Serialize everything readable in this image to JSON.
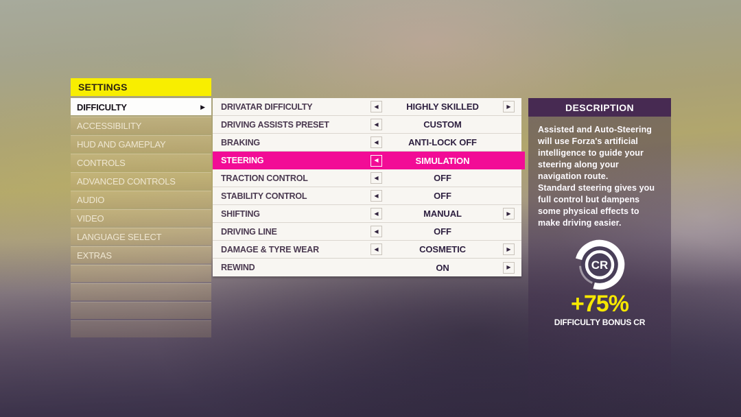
{
  "sidebar": {
    "title": "SETTINGS",
    "items": [
      {
        "label": "DIFFICULTY",
        "selected": true
      },
      {
        "label": "ACCESSIBILITY",
        "selected": false
      },
      {
        "label": "HUD AND GAMEPLAY",
        "selected": false
      },
      {
        "label": "CONTROLS",
        "selected": false
      },
      {
        "label": "ADVANCED CONTROLS",
        "selected": false
      },
      {
        "label": "AUDIO",
        "selected": false
      },
      {
        "label": "VIDEO",
        "selected": false
      },
      {
        "label": "LANGUAGE SELECT",
        "selected": false
      },
      {
        "label": "EXTRAS",
        "selected": false
      },
      {
        "label": "",
        "selected": false
      },
      {
        "label": "",
        "selected": false
      },
      {
        "label": "",
        "selected": false
      },
      {
        "label": "",
        "selected": false
      }
    ]
  },
  "settings": {
    "rows": [
      {
        "label": "DRIVATAR DIFFICULTY",
        "value": "HIGHLY SKILLED",
        "left_arrow": true,
        "right_arrow": true,
        "selected": false
      },
      {
        "label": "DRIVING ASSISTS PRESET",
        "value": "CUSTOM",
        "left_arrow": true,
        "right_arrow": false,
        "selected": false
      },
      {
        "label": "BRAKING",
        "value": "ANTI-LOCK OFF",
        "left_arrow": true,
        "right_arrow": false,
        "selected": false
      },
      {
        "label": "STEERING",
        "value": "SIMULATION",
        "left_arrow": true,
        "right_arrow": false,
        "selected": true
      },
      {
        "label": "TRACTION CONTROL",
        "value": "OFF",
        "left_arrow": true,
        "right_arrow": false,
        "selected": false
      },
      {
        "label": "STABILITY CONTROL",
        "value": "OFF",
        "left_arrow": true,
        "right_arrow": false,
        "selected": false
      },
      {
        "label": "SHIFTING",
        "value": "MANUAL",
        "left_arrow": true,
        "right_arrow": true,
        "selected": false
      },
      {
        "label": "DRIVING LINE",
        "value": "OFF",
        "left_arrow": true,
        "right_arrow": false,
        "selected": false
      },
      {
        "label": "DAMAGE & TYRE WEAR",
        "value": "COSMETIC",
        "left_arrow": true,
        "right_arrow": true,
        "selected": false
      },
      {
        "label": "REWIND",
        "value": "ON",
        "left_arrow": false,
        "right_arrow": true,
        "selected": false
      }
    ]
  },
  "description": {
    "title": "DESCRIPTION",
    "paragraphs": [
      "Assisted and Auto-Steering will use Forza's artificial intelligence to guide your steering along your navigation route.",
      "Standard steering gives you full control but dampens some physical effects to make driving easier."
    ],
    "bonus": {
      "currency_icon": "CR",
      "percent": "+75%",
      "label": "DIFFICULTY BONUS CR",
      "progress_percent": 75
    }
  },
  "colors": {
    "accent_yellow": "#f8ee00",
    "accent_pink": "#f20c96",
    "header_purple": "#472a52"
  }
}
